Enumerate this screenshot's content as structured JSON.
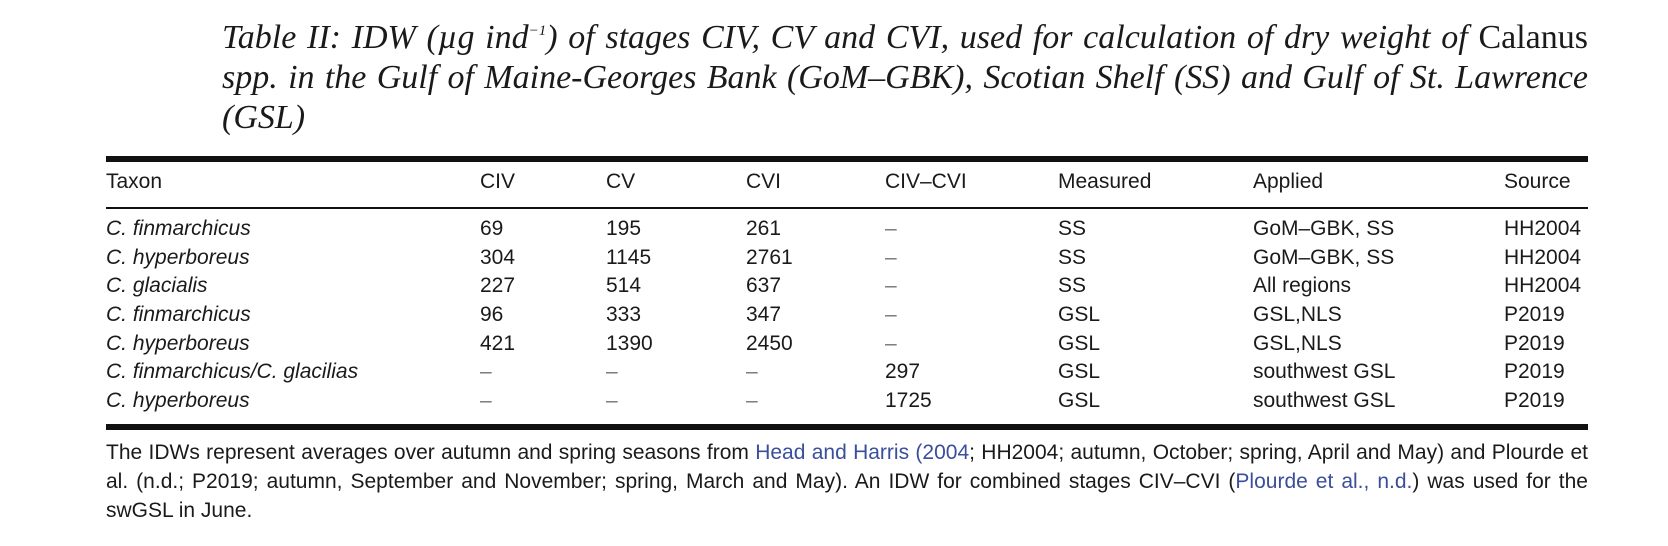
{
  "caption": {
    "p1": "Table II:  IDW (µg ind",
    "sup": "−1",
    "p2": ") of stages CIV, CV and CVI, used for calculation of dry weight of ",
    "genus": "Calanus",
    "p3": " spp. in the Gulf of Maine-Georges Bank (GoM–GBK), Scotian Shelf (SS) and Gulf of St. Lawrence (GSL)"
  },
  "headers": [
    "Taxon",
    "CIV",
    "CV",
    "CVI",
    "CIV–CVI",
    "Measured",
    "Applied",
    "Source"
  ],
  "rows": [
    [
      "C. finmarchicus",
      "69",
      "195",
      "261",
      "–",
      "SS",
      "GoM–GBK, SS",
      "HH2004"
    ],
    [
      "C. hyperboreus",
      "304",
      "1145",
      "2761",
      "–",
      "SS",
      "GoM–GBK, SS",
      "HH2004"
    ],
    [
      "C. glacialis",
      "227",
      "514",
      "637",
      "–",
      "SS",
      "All regions",
      "HH2004"
    ],
    [
      "C. finmarchicus",
      "96",
      "333",
      "347",
      "–",
      "GSL",
      "GSL,NLS",
      "P2019"
    ],
    [
      "C. hyperboreus",
      "421",
      "1390",
      "2450",
      "–",
      "GSL",
      "GSL,NLS",
      "P2019"
    ],
    [
      "C. finmarchicus/C. glacilias",
      "–",
      "–",
      "–",
      "297",
      "GSL",
      "southwest GSL",
      "P2019"
    ],
    [
      "C. hyperboreus",
      "–",
      "–",
      "–",
      "1725",
      "GSL",
      "southwest GSL",
      "P2019"
    ]
  ],
  "footnote": {
    "t1": "The IDWs represent averages over autumn and spring seasons from ",
    "link1": "Head and Harris (2004",
    "t2": "; HH2004; autumn, October; spring, April and May) and Plourde et al. (n.d.; P2019; autumn, September and November; spring, March and May). An IDW for combined stages CIV–CVI (",
    "link2": "Plourde et al., n.d.",
    "t3": ") was used for the swGSL in June."
  }
}
